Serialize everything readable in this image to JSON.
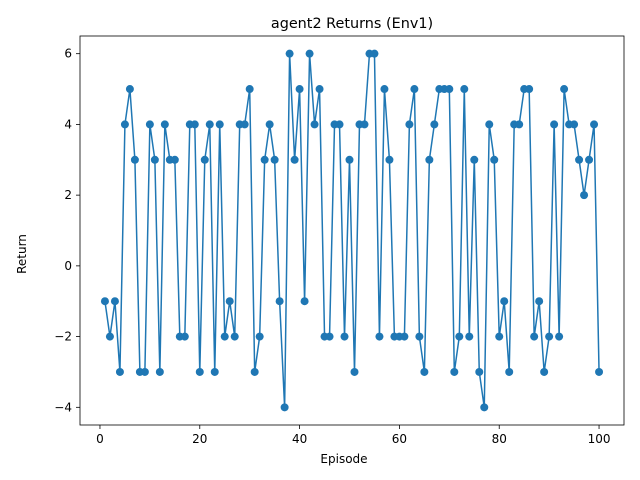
{
  "chart_data": {
    "type": "line",
    "title": "agent2 Returns (Env1)",
    "xlabel": "Episode",
    "ylabel": "Return",
    "xlim": [
      -4,
      105
    ],
    "ylim": [
      -4.5,
      6.5
    ],
    "xticks": [
      0,
      20,
      40,
      60,
      80,
      100
    ],
    "yticks": [
      -4,
      -2,
      0,
      2,
      4,
      6
    ],
    "grid": false,
    "color": "#1f77b4",
    "markers": true,
    "x": [
      1,
      2,
      3,
      4,
      5,
      6,
      7,
      8,
      9,
      10,
      11,
      12,
      13,
      14,
      15,
      16,
      17,
      18,
      19,
      20,
      21,
      22,
      23,
      24,
      25,
      26,
      27,
      28,
      29,
      30,
      31,
      32,
      33,
      34,
      35,
      36,
      37,
      38,
      39,
      40,
      41,
      42,
      43,
      44,
      45,
      46,
      47,
      48,
      49,
      50,
      51,
      52,
      53,
      54,
      55,
      56,
      57,
      58,
      59,
      60,
      61,
      62,
      63,
      64,
      65,
      66,
      67,
      68,
      69,
      70,
      71,
      72,
      73,
      74,
      75,
      76,
      77,
      78,
      79,
      80,
      81,
      82,
      83,
      84,
      85,
      86,
      87,
      88,
      89,
      90,
      91,
      92,
      93,
      94,
      95,
      96,
      97,
      98,
      99,
      100
    ],
    "values": [
      -1,
      -2,
      -1,
      -3,
      4,
      5,
      3,
      -3,
      -3,
      4,
      3,
      -3,
      4,
      3,
      3,
      -2,
      -2,
      4,
      4,
      -3,
      3,
      4,
      -3,
      4,
      -2,
      -1,
      -2,
      4,
      4,
      5,
      -3,
      -2,
      3,
      4,
      3,
      -1,
      -4,
      6,
      3,
      5,
      -1,
      6,
      4,
      5,
      -2,
      -2,
      4,
      4,
      -2,
      3,
      -3,
      4,
      4,
      6,
      6,
      -2,
      5,
      3,
      -2,
      -2,
      -2,
      4,
      5,
      -2,
      -3,
      3,
      4,
      5,
      5,
      5,
      -3,
      -2,
      5,
      -2,
      3,
      -3,
      -4,
      4,
      3,
      -2,
      -1,
      -3,
      4,
      4,
      5,
      5,
      -2,
      -1,
      -3,
      -2,
      4,
      -2,
      5,
      4,
      4,
      3,
      2,
      3,
      4,
      -3
    ]
  }
}
